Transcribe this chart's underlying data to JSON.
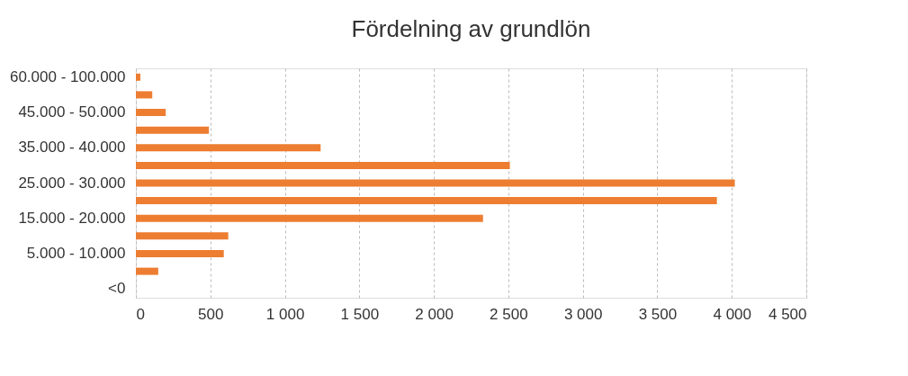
{
  "chart_data": {
    "type": "bar",
    "orientation": "horizontal",
    "title": "Fördelning av grundlön",
    "categories": [
      "60.000 - 100.000",
      null,
      "45.000 -  50.000",
      null,
      "35.000 -  40.000",
      null,
      "25.000 -  30.000",
      null,
      "15.000 -  20.000",
      null,
      "5.000 -   10.000",
      null,
      "<0"
    ],
    "values": [
      30,
      110,
      200,
      490,
      1240,
      2510,
      4020,
      3900,
      2330,
      620,
      590,
      150,
      0
    ],
    "color": "#ed7d31",
    "xlim": [
      0,
      4500
    ],
    "xticks": [
      0,
      500,
      {
        "value": 1000,
        "label": "1 000"
      },
      {
        "value": 1500,
        "label": "1 500"
      },
      {
        "value": 2000,
        "label": "2 000"
      },
      {
        "value": 2500,
        "label": "2 500"
      },
      {
        "value": 3000,
        "label": "3 000"
      },
      {
        "value": 3500,
        "label": "3 500"
      },
      {
        "value": 4000,
        "label": "4 000"
      },
      {
        "value": 4500,
        "label": "4 500"
      }
    ],
    "grid": "x"
  }
}
